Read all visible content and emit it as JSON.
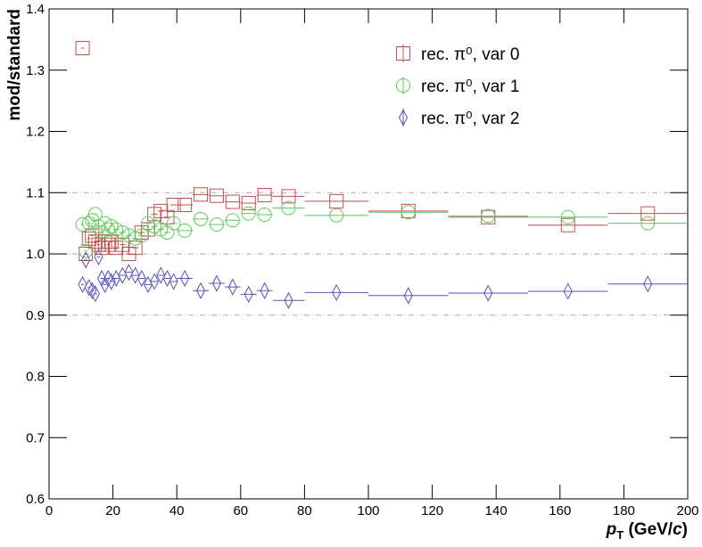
{
  "chart_data": {
    "type": "scatter",
    "y_label": "mod/standard",
    "x_label": [
      "p",
      "T",
      " (GeV/",
      "c",
      ")"
    ],
    "x": [
      10.5,
      11.5,
      12.5,
      13.5,
      14.5,
      15.5,
      16.5,
      17.5,
      18.5,
      19.5,
      21,
      23,
      25,
      27,
      29,
      31,
      33,
      35,
      37,
      39,
      42.5,
      47.5,
      52.5,
      57.5,
      62.5,
      67.5,
      75,
      90,
      112.5,
      137.5,
      162.5,
      187.5
    ],
    "xerr": [
      0.5,
      0.5,
      0.5,
      0.5,
      0.5,
      0.5,
      0.5,
      0.5,
      0.5,
      0.5,
      1,
      1,
      1,
      1,
      1,
      1,
      1,
      1,
      1,
      1,
      2.5,
      2.5,
      2.5,
      2.5,
      2.5,
      2.5,
      5,
      10,
      12.5,
      12.5,
      12.5,
      12.5
    ],
    "series": [
      {
        "name": "rec. π⁰, var 0",
        "color": "#c0504d",
        "marker": "square",
        "values": [
          1.336,
          1.0,
          1.025,
          1.03,
          1.02,
          1.015,
          1.01,
          1.02,
          1.015,
          1.02,
          1.01,
          1.015,
          1.0,
          1.01,
          1.035,
          1.04,
          1.065,
          1.07,
          1.06,
          1.08,
          1.08,
          1.097,
          1.095,
          1.085,
          1.083,
          1.096,
          1.094,
          1.086,
          1.07,
          1.06,
          1.047,
          1.066
        ]
      },
      {
        "name": "rec. π⁰, var 1",
        "color": "#5ccb5c",
        "marker": "circle",
        "values": [
          1.048,
          1.005,
          1.05,
          1.055,
          1.065,
          1.045,
          1.035,
          1.05,
          1.04,
          1.045,
          1.04,
          1.035,
          1.03,
          1.025,
          1.03,
          1.05,
          1.045,
          1.04,
          1.035,
          1.05,
          1.038,
          1.057,
          1.048,
          1.055,
          1.066,
          1.064,
          1.075,
          1.063,
          1.068,
          1.062,
          1.06,
          1.05
        ]
      },
      {
        "name": "rec. π⁰, var 2",
        "color": "#5454b8",
        "marker": "diamond",
        "values": [
          0.95,
          0.99,
          0.945,
          0.94,
          0.935,
          0.995,
          0.96,
          0.95,
          0.96,
          0.955,
          0.96,
          0.965,
          0.97,
          0.965,
          0.96,
          0.95,
          0.955,
          0.965,
          0.96,
          0.955,
          0.96,
          0.94,
          0.952,
          0.946,
          0.934,
          0.94,
          0.924,
          0.937,
          0.932,
          0.936,
          0.939,
          0.951
        ]
      }
    ],
    "xlim": [
      0,
      200
    ],
    "xticks": [
      0,
      20,
      40,
      60,
      80,
      100,
      120,
      140,
      160,
      180,
      200
    ],
    "ylim": [
      0.6,
      1.4
    ],
    "yticks": [
      0.6,
      0.7,
      0.8,
      0.9,
      {
        "value": 1,
        "label": "1.0"
      },
      1.1,
      1.2,
      1.3,
      1.4
    ],
    "hlines": [
      0.9,
      1,
      1.1
    ],
    "legend": "top-right"
  }
}
